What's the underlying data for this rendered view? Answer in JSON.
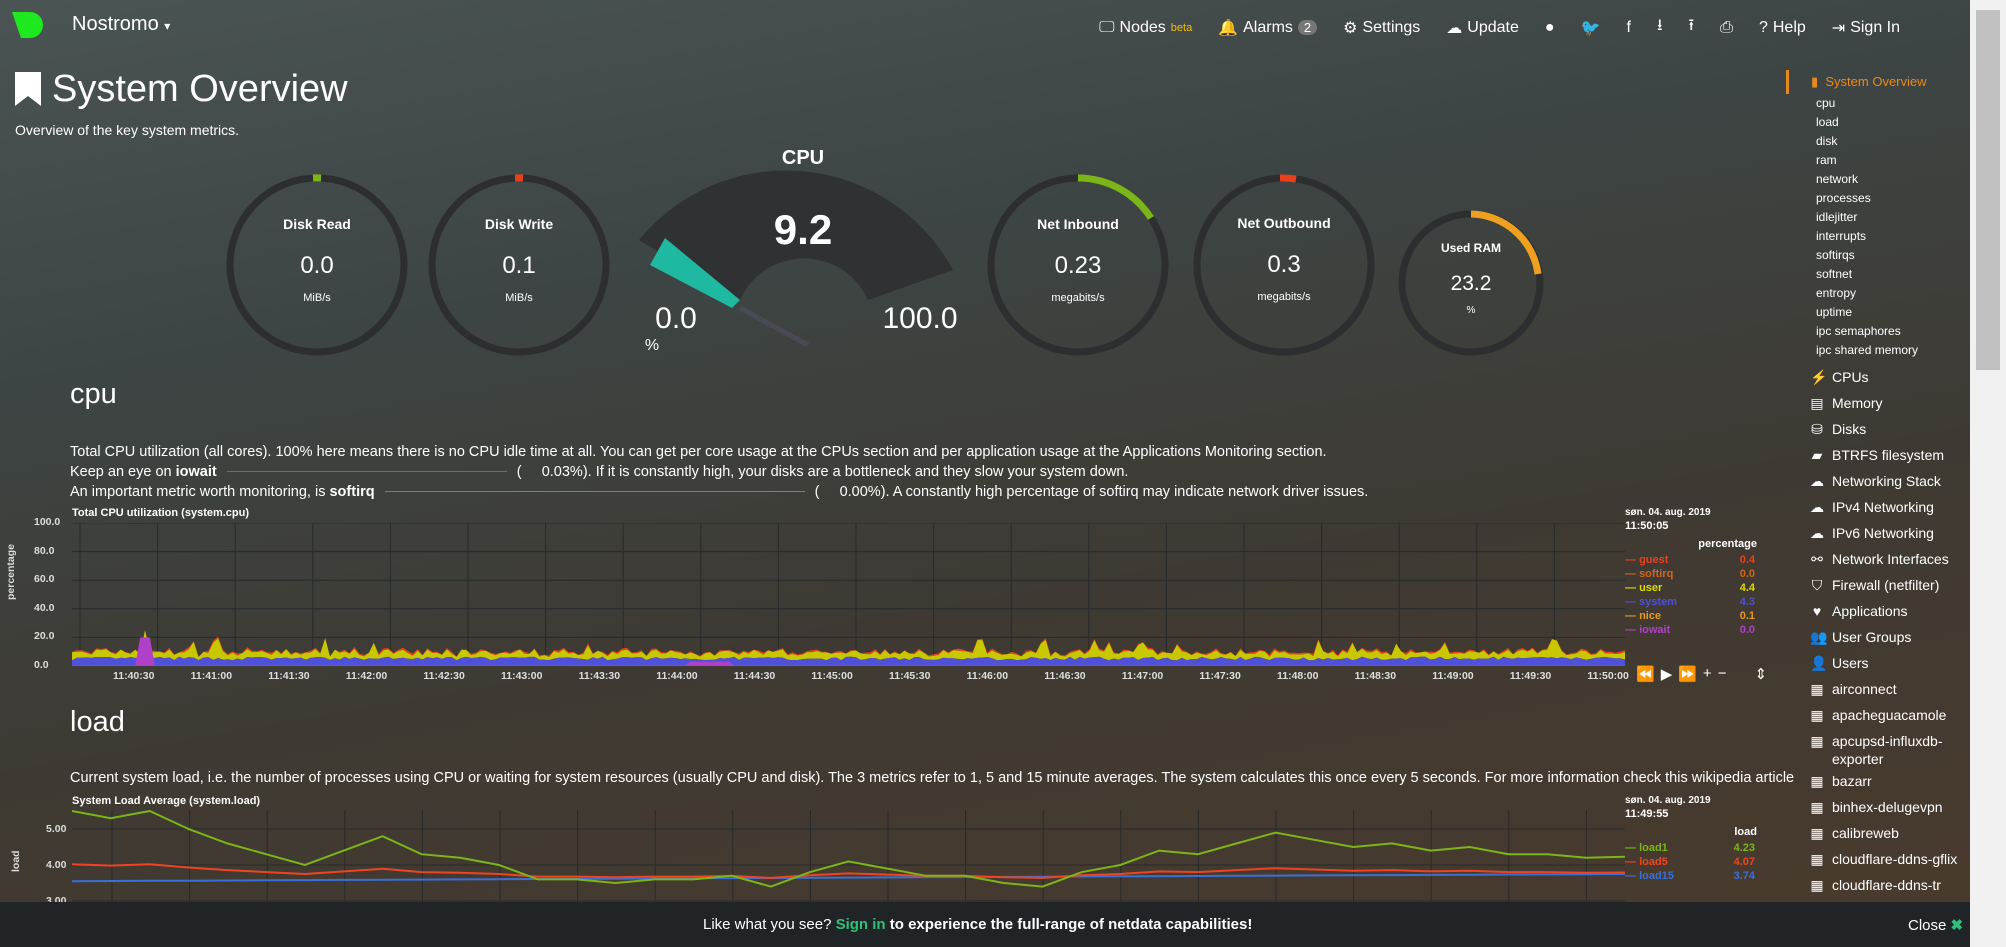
{
  "nav": {
    "brand": "Nostromo",
    "nodes": "Nodes",
    "beta": "beta",
    "alarms": "Alarms",
    "alarms_count": "2",
    "settings": "Settings",
    "update": "Update",
    "help": "Help",
    "signin": "Sign In"
  },
  "page": {
    "title": "System Overview",
    "subtitle": "Overview of the key system metrics."
  },
  "gauges": {
    "disk_read": {
      "label": "Disk Read",
      "value": "0.0",
      "unit": "MiB/s"
    },
    "disk_write": {
      "label": "Disk Write",
      "value": "0.1",
      "unit": "MiB/s"
    },
    "cpu": {
      "label": "CPU",
      "value": "9.2",
      "min": "0.0",
      "max": "100.0",
      "unit": "%"
    },
    "net_in": {
      "label": "Net Inbound",
      "value": "0.23",
      "unit": "megabits/s"
    },
    "net_out": {
      "label": "Net Outbound",
      "value": "0.3",
      "unit": "megabits/s"
    },
    "ram": {
      "label": "Used RAM",
      "value": "23.2",
      "unit": "%",
      "fraction": 0.232
    }
  },
  "cpu_section": {
    "heading": "cpu",
    "line1": "Total CPU utilization (all cores). 100% here means there is no CPU idle time at all. You can get per core usage at the CPUs section and per application usage at the Applications Monitoring section.",
    "line2a": "Keep an eye on ",
    "line2b": "iowait",
    "line2c": "0.03%). If it is constantly high, your disks are a bottleneck and they slow your system down.",
    "line3a": "An important metric worth monitoring, is ",
    "line3b": "softirq",
    "line3c": "0.00%). A constantly high percentage of softirq may indicate network driver issues.",
    "chart_title": "Total CPU utilization (system.cpu)",
    "ylabel": "percentage",
    "yticks": [
      "100.0",
      "80.0",
      "60.0",
      "40.0",
      "20.0",
      "0.0"
    ],
    "xticks": [
      "11:40:30",
      "11:41:00",
      "11:41:30",
      "11:42:00",
      "11:42:30",
      "11:43:00",
      "11:43:30",
      "11:44:00",
      "11:44:30",
      "11:45:00",
      "11:45:30",
      "11:46:00",
      "11:46:30",
      "11:47:00",
      "11:47:30",
      "11:48:00",
      "11:48:30",
      "11:49:00",
      "11:49:30",
      "11:50:00"
    ],
    "date": "søn. 04. aug. 2019",
    "time": "11:50:05",
    "units": "percentage",
    "legend": [
      {
        "name": "guest",
        "value": "0.4",
        "color": "#e8401c"
      },
      {
        "name": "softirq",
        "value": "0.0",
        "color": "#d2651a"
      },
      {
        "name": "user",
        "value": "4.4",
        "color": "#dddd00"
      },
      {
        "name": "system",
        "value": "4.3",
        "color": "#5050d8"
      },
      {
        "name": "nice",
        "value": "0.1",
        "color": "#e89a1b"
      },
      {
        "name": "iowait",
        "value": "0.0",
        "color": "#b040c8"
      }
    ]
  },
  "load_section": {
    "heading": "load",
    "text": "Current system load, i.e. the number of processes using CPU or waiting for system resources (usually CPU and disk). The 3 metrics refer to 1, 5 and 15 minute averages. The system calculates this once every 5 seconds. For more information check this wikipedia article",
    "chart_title": "System Load Average (system.load)",
    "ylabel": "load",
    "yticks": [
      "5.00",
      "4.00",
      "3.00"
    ],
    "date": "søn. 04. aug. 2019",
    "time": "11:49:55",
    "units": "load",
    "legend": [
      {
        "name": "load1",
        "value": "4.23",
        "color": "#7cb518"
      },
      {
        "name": "load5",
        "value": "4.07",
        "color": "#ee4422"
      },
      {
        "name": "load15",
        "value": "3.74",
        "color": "#3a6fd8"
      }
    ]
  },
  "sidebar": {
    "current": "System Overview",
    "sub": [
      "cpu",
      "load",
      "disk",
      "ram",
      "network",
      "processes",
      "idlejitter",
      "interrupts",
      "softirqs",
      "softnet",
      "entropy",
      "uptime",
      "ipc semaphores",
      "ipc shared memory"
    ],
    "sections": [
      {
        "icon": "⚡",
        "label": "CPUs"
      },
      {
        "icon": "▤",
        "label": "Memory"
      },
      {
        "icon": "⛁",
        "label": "Disks"
      },
      {
        "icon": "▰",
        "label": "BTRFS filesystem"
      },
      {
        "icon": "☁",
        "label": "Networking Stack"
      },
      {
        "icon": "☁",
        "label": "IPv4 Networking"
      },
      {
        "icon": "☁",
        "label": "IPv6 Networking"
      },
      {
        "icon": "⚯",
        "label": "Network Interfaces"
      },
      {
        "icon": "⛉",
        "label": "Firewall (netfilter)"
      },
      {
        "icon": "♥",
        "label": "Applications"
      },
      {
        "icon": "👥",
        "label": "User Groups"
      },
      {
        "icon": "👤",
        "label": "Users"
      },
      {
        "icon": "▦",
        "label": "airconnect"
      },
      {
        "icon": "▦",
        "label": "apacheguacamole"
      },
      {
        "icon": "▦",
        "label": "apcupsd-influxdb-exporter"
      },
      {
        "icon": "▦",
        "label": "bazarr"
      },
      {
        "icon": "▦",
        "label": "binhex-delugevpn"
      },
      {
        "icon": "▦",
        "label": "calibreweb"
      },
      {
        "icon": "▦",
        "label": "cloudflare-ddns-gflix"
      },
      {
        "icon": "▦",
        "label": "cloudflare-ddns-tr"
      }
    ]
  },
  "banner": {
    "a": "Like what you see? ",
    "link": "Sign in",
    "b": " to experience the full-range of netdata capabilities!",
    "close": "Close"
  }
}
